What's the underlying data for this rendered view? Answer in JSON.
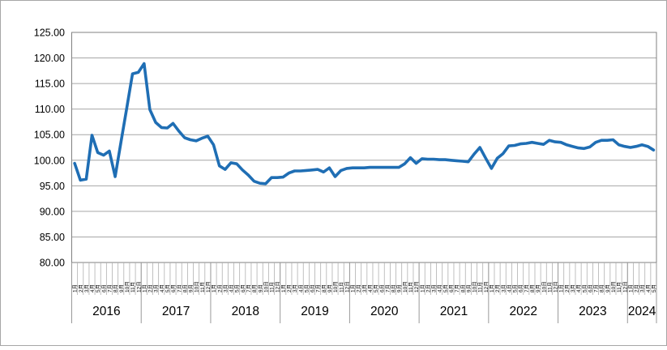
{
  "chart_data": {
    "type": "line",
    "title": "",
    "xlabel": "",
    "ylabel": "",
    "ylim": [
      80,
      125
    ],
    "y_tick_step": 5,
    "y_tick_labels": [
      "80.00",
      "85.00",
      "90.00",
      "95.00",
      "100.00",
      "105.00",
      "110.00",
      "115.00",
      "120.00",
      "125.00"
    ],
    "grid": "horizontal",
    "legend": "none",
    "month_label_suffix": "月",
    "line_color": "#1f6eb4",
    "axis_color": "#808080",
    "grid_color": "#a6a6a6",
    "series_name": "",
    "x_years": [
      {
        "year": "2016",
        "monthly_values": [
          99.4,
          96.1,
          96.3,
          104.9,
          101.5,
          101.0,
          101.8,
          96.8,
          103.5,
          110.2,
          116.9,
          117.2
        ]
      },
      {
        "year": "2017",
        "monthly_values": [
          118.9,
          109.9,
          107.4,
          106.4,
          106.3,
          107.2,
          105.7,
          104.4,
          104.0,
          103.8,
          104.3,
          104.7
        ]
      },
      {
        "year": "2018",
        "monthly_values": [
          103.0,
          98.9,
          98.2,
          99.5,
          99.3,
          98.1,
          97.1,
          95.9,
          95.5,
          95.4,
          96.6,
          96.6
        ]
      },
      {
        "year": "2019",
        "monthly_values": [
          96.7,
          97.5,
          97.9,
          97.9,
          98.0,
          98.1,
          98.2,
          97.7,
          98.5,
          96.8,
          98.0,
          98.4
        ]
      },
      {
        "year": "2020",
        "monthly_values": [
          98.5,
          98.5,
          98.5,
          98.6,
          98.6,
          98.6,
          98.6,
          98.6,
          98.6,
          99.3,
          100.5,
          99.4
        ]
      },
      {
        "year": "2021",
        "monthly_values": [
          100.3,
          100.2,
          100.2,
          100.1,
          100.1,
          100.0,
          99.9,
          99.8,
          99.7,
          101.2,
          102.5,
          100.4
        ]
      },
      {
        "year": "2022",
        "monthly_values": [
          98.4,
          100.4,
          101.3,
          102.8,
          102.9,
          103.2,
          103.3,
          103.5,
          103.3,
          103.1,
          103.9,
          103.6
        ]
      },
      {
        "year": "2023",
        "monthly_values": [
          103.5,
          103.0,
          102.7,
          102.4,
          102.3,
          102.6,
          103.5,
          103.9,
          103.9,
          104.0,
          103.0,
          102.7
        ]
      },
      {
        "year": "2024",
        "monthly_values": [
          102.5,
          102.7,
          103.0,
          102.7,
          102.0
        ]
      }
    ]
  }
}
